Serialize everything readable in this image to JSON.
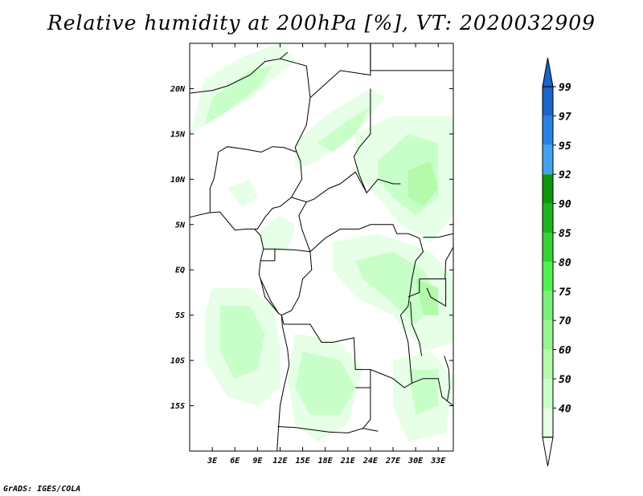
{
  "title": "Relative humidity at 200hPa [%], VT: 2020032909",
  "credit": "GrADS: IGES/COLA",
  "map": {
    "lon_range": [
      0,
      35
    ],
    "lat_range": [
      -20,
      25
    ],
    "lat_ticks": [
      {
        "value": 20,
        "label": "20N"
      },
      {
        "value": 15,
        "label": "15N"
      },
      {
        "value": 10,
        "label": "10N"
      },
      {
        "value": 5,
        "label": "5N"
      },
      {
        "value": 0,
        "label": "EQ"
      },
      {
        "value": -5,
        "label": "5S"
      },
      {
        "value": -10,
        "label": "10S"
      },
      {
        "value": -15,
        "label": "15S"
      }
    ],
    "lon_ticks": [
      {
        "value": 3,
        "label": "3E"
      },
      {
        "value": 6,
        "label": "6E"
      },
      {
        "value": 9,
        "label": "9E"
      },
      {
        "value": 12,
        "label": "12E"
      },
      {
        "value": 15,
        "label": "15E"
      },
      {
        "value": 18,
        "label": "18E"
      },
      {
        "value": 21,
        "label": "21E"
      },
      {
        "value": 24,
        "label": "24E"
      },
      {
        "value": 27,
        "label": "27E"
      },
      {
        "value": 30,
        "label": "30E"
      },
      {
        "value": 33,
        "label": "33E"
      }
    ],
    "humid_regions": [
      {
        "level": 40,
        "pts": [
          [
            2,
            21
          ],
          [
            7,
            23.5
          ],
          [
            12,
            25
          ],
          [
            14,
            23
          ],
          [
            8,
            19
          ],
          [
            3,
            16.5
          ],
          [
            0,
            15
          ]
        ]
      },
      {
        "level": 50,
        "pts": [
          [
            3,
            19
          ],
          [
            8,
            22
          ],
          [
            11,
            22.5
          ],
          [
            9,
            20
          ],
          [
            5,
            17.5
          ],
          [
            2,
            16
          ]
        ]
      },
      {
        "level": 40,
        "pts": [
          [
            14,
            14
          ],
          [
            18,
            17
          ],
          [
            24,
            20
          ],
          [
            26,
            19
          ],
          [
            22,
            15
          ],
          [
            17,
            12
          ],
          [
            14,
            11
          ]
        ]
      },
      {
        "level": 50,
        "pts": [
          [
            17,
            14
          ],
          [
            21,
            16.5
          ],
          [
            24,
            18
          ],
          [
            22,
            15
          ],
          [
            19,
            13
          ]
        ]
      },
      {
        "level": 40,
        "pts": [
          [
            22,
            15
          ],
          [
            27,
            17
          ],
          [
            35,
            17
          ],
          [
            35,
            6
          ],
          [
            32,
            3
          ],
          [
            28,
            5
          ],
          [
            25,
            8
          ],
          [
            22,
            11
          ]
        ]
      },
      {
        "level": 50,
        "pts": [
          [
            25,
            12
          ],
          [
            29,
            15
          ],
          [
            33,
            14
          ],
          [
            33,
            8
          ],
          [
            30,
            6
          ],
          [
            27,
            8
          ],
          [
            25,
            10
          ]
        ]
      },
      {
        "level": 60,
        "pts": [
          [
            29,
            11
          ],
          [
            32,
            12
          ],
          [
            33,
            9
          ],
          [
            31,
            7
          ],
          [
            29,
            8
          ]
        ]
      },
      {
        "level": 40,
        "pts": [
          [
            19,
            3
          ],
          [
            25,
            4
          ],
          [
            32,
            2
          ],
          [
            35,
            -1
          ],
          [
            35,
            -8
          ],
          [
            31,
            -9
          ],
          [
            27,
            -5
          ],
          [
            22,
            -3
          ],
          [
            19,
            0
          ]
        ]
      },
      {
        "level": 50,
        "pts": [
          [
            22,
            1
          ],
          [
            27,
            2
          ],
          [
            31,
            0
          ],
          [
            33,
            -3
          ],
          [
            30,
            -6
          ],
          [
            26,
            -3
          ],
          [
            23,
            -1
          ]
        ]
      },
      {
        "level": 60,
        "pts": [
          [
            30,
            -1
          ],
          [
            33,
            -2
          ],
          [
            33,
            -5
          ],
          [
            31,
            -5
          ]
        ]
      },
      {
        "level": 40,
        "pts": [
          [
            3,
            -2
          ],
          [
            8,
            -2
          ],
          [
            11,
            -4
          ],
          [
            12,
            -8
          ],
          [
            12,
            -13
          ],
          [
            9,
            -15
          ],
          [
            5,
            -14
          ],
          [
            2,
            -10
          ],
          [
            2,
            -5
          ]
        ]
      },
      {
        "level": 50,
        "pts": [
          [
            4,
            -4
          ],
          [
            8,
            -4
          ],
          [
            10,
            -7
          ],
          [
            9,
            -11
          ],
          [
            6,
            -12
          ],
          [
            4,
            -9
          ]
        ]
      },
      {
        "level": 40,
        "pts": [
          [
            14,
            -7
          ],
          [
            20,
            -8
          ],
          [
            23,
            -11
          ],
          [
            21,
            -17
          ],
          [
            17,
            -19
          ],
          [
            14,
            -17
          ],
          [
            13,
            -12
          ]
        ]
      },
      {
        "level": 50,
        "pts": [
          [
            15,
            -9
          ],
          [
            20,
            -10
          ],
          [
            22,
            -13
          ],
          [
            20,
            -16
          ],
          [
            16,
            -16
          ],
          [
            14,
            -13
          ]
        ]
      },
      {
        "level": 40,
        "pts": [
          [
            27,
            -10
          ],
          [
            32,
            -9
          ],
          [
            35,
            -12
          ],
          [
            34,
            -18
          ],
          [
            29,
            -19
          ],
          [
            27,
            -15
          ]
        ]
      },
      {
        "level": 50,
        "pts": [
          [
            29,
            -11
          ],
          [
            33,
            -11
          ],
          [
            33,
            -15
          ],
          [
            30,
            -16
          ]
        ]
      },
      {
        "level": 40,
        "pts": [
          [
            9,
            4
          ],
          [
            12,
            6
          ],
          [
            14,
            5
          ],
          [
            13,
            2
          ],
          [
            10,
            2
          ]
        ]
      },
      {
        "level": 40,
        "pts": [
          [
            5,
            9
          ],
          [
            8,
            10
          ],
          [
            9,
            8
          ],
          [
            7,
            7
          ]
        ]
      }
    ],
    "borders": [
      [
        [
          0,
          19.5
        ],
        [
          3,
          19.8
        ],
        [
          5,
          20.3
        ],
        [
          8,
          21.5
        ],
        [
          10,
          23
        ],
        [
          12,
          23.3
        ],
        [
          13,
          24
        ]
      ],
      [
        [
          12,
          23.3
        ],
        [
          15.5,
          22.5
        ],
        [
          16,
          19
        ],
        [
          15.5,
          16
        ],
        [
          14,
          13.5
        ],
        [
          14.2,
          13
        ]
      ],
      [
        [
          16,
          19
        ],
        [
          20,
          22
        ],
        [
          24,
          21.5
        ],
        [
          24,
          25
        ]
      ],
      [
        [
          24,
          20
        ],
        [
          24,
          15
        ],
        [
          22.5,
          13.5
        ],
        [
          21.8,
          12.5
        ],
        [
          22.5,
          10.5
        ],
        [
          23.5,
          8.5
        ],
        [
          25,
          10
        ],
        [
          27,
          9.5
        ],
        [
          28,
          9.5
        ]
      ],
      [
        [
          14.2,
          13
        ],
        [
          12.5,
          13.5
        ],
        [
          11,
          13.6
        ],
        [
          9.5,
          13
        ],
        [
          7.5,
          13.3
        ],
        [
          5,
          13.6
        ],
        [
          3.8,
          13
        ],
        [
          3.6,
          11.8
        ],
        [
          3.2,
          10
        ],
        [
          2.7,
          9
        ],
        [
          2.7,
          6.3
        ]
      ],
      [
        [
          14.2,
          13
        ],
        [
          14.7,
          12
        ],
        [
          14.9,
          10
        ],
        [
          13.5,
          8
        ],
        [
          12,
          7
        ],
        [
          11,
          6.8
        ],
        [
          10,
          5.8
        ],
        [
          9,
          4.5
        ],
        [
          8.6,
          4.5
        ]
      ],
      [
        [
          13.5,
          8
        ],
        [
          15.5,
          7.5
        ],
        [
          16.5,
          7.8
        ],
        [
          18.5,
          9
        ],
        [
          20,
          9.5
        ],
        [
          22,
          10.8
        ],
        [
          23.5,
          8.5
        ]
      ],
      [
        [
          14.9,
          4.5
        ],
        [
          14.5,
          6
        ],
        [
          15.5,
          7.5
        ]
      ],
      [
        [
          14.9,
          4.5
        ],
        [
          16,
          2
        ],
        [
          18,
          3.5
        ],
        [
          20,
          4.5
        ],
        [
          22.5,
          4.5
        ],
        [
          24,
          5
        ],
        [
          27,
          5
        ],
        [
          27.5,
          4
        ],
        [
          29,
          4
        ],
        [
          30.5,
          3.5
        ],
        [
          31,
          2
        ],
        [
          30,
          1
        ]
      ],
      [
        [
          9.8,
          2.3
        ],
        [
          11.3,
          2.3
        ],
        [
          11.3,
          1
        ],
        [
          9.4,
          1
        ]
      ],
      [
        [
          11.3,
          2.3
        ],
        [
          14,
          2.2
        ],
        [
          16,
          2
        ],
        [
          16.2,
          0
        ],
        [
          15,
          -1
        ],
        [
          14.5,
          -3
        ],
        [
          13.5,
          -4.5
        ],
        [
          12.2,
          -5
        ]
      ],
      [
        [
          9.4,
          -1
        ],
        [
          10,
          -3
        ],
        [
          11,
          -4
        ],
        [
          11.8,
          -4.8
        ]
      ],
      [
        [
          12.2,
          -5
        ],
        [
          12.5,
          -6
        ],
        [
          16,
          -6
        ],
        [
          17.5,
          -8
        ],
        [
          19,
          -8
        ],
        [
          21.8,
          -7.5
        ],
        [
          22,
          -11
        ],
        [
          24,
          -11
        ],
        [
          25.5,
          -11.5
        ],
        [
          27,
          -12
        ],
        [
          28.5,
          -13
        ],
        [
          29.5,
          -12.5
        ],
        [
          29,
          -8
        ],
        [
          28,
          -5
        ],
        [
          29,
          -4
        ],
        [
          29.5,
          -1
        ],
        [
          30,
          1
        ]
      ],
      [
        [
          11.7,
          -17.3
        ],
        [
          14,
          -17.4
        ],
        [
          18.5,
          -17.9
        ],
        [
          21,
          -18
        ],
        [
          23,
          -17.5
        ],
        [
          25,
          -17.8
        ]
      ],
      [
        [
          22,
          -13
        ],
        [
          24,
          -13
        ],
        [
          24,
          -16.5
        ],
        [
          23,
          -17.5
        ]
      ],
      [
        [
          24,
          -11
        ],
        [
          24,
          -13
        ]
      ],
      [
        [
          30.5,
          -1
        ],
        [
          30.5,
          -2.5
        ],
        [
          29,
          -3
        ]
      ],
      [
        [
          30.5,
          -1
        ],
        [
          33.9,
          -1
        ],
        [
          34,
          1
        ],
        [
          35,
          2.5
        ]
      ],
      [
        [
          29.5,
          -12.5
        ],
        [
          31,
          -12
        ],
        [
          33,
          -12
        ],
        [
          33.5,
          -14
        ],
        [
          35,
          -15
        ]
      ],
      [
        [
          26,
          22
        ],
        [
          35,
          22
        ]
      ],
      [
        [
          24,
          25
        ],
        [
          24,
          22
        ],
        [
          26,
          22
        ]
      ],
      [
        [
          31,
          3.6
        ],
        [
          33,
          3.6
        ],
        [
          35,
          4
        ]
      ],
      [
        [
          32,
          -1
        ],
        [
          34,
          -1
        ],
        [
          34,
          -4
        ],
        [
          32,
          -3
        ],
        [
          31.5,
          -2
        ]
      ],
      [
        [
          29.3,
          -3.5
        ],
        [
          29.5,
          -6
        ],
        [
          30.5,
          -8
        ],
        [
          30.8,
          -9.5
        ]
      ],
      [
        [
          33.8,
          -9.5
        ],
        [
          34.4,
          -11
        ],
        [
          34.5,
          -13
        ],
        [
          34.2,
          -14.5
        ]
      ]
    ],
    "coastline": [
      [
        0,
        5.8
      ],
      [
        2.5,
        6.3
      ],
      [
        4,
        6.4
      ],
      [
        6,
        4.4
      ],
      [
        7.5,
        4.5
      ],
      [
        8.6,
        4.5
      ],
      [
        9.4,
        3.8
      ],
      [
        9.8,
        2.3
      ],
      [
        9.4,
        1
      ],
      [
        9.2,
        -0.5
      ],
      [
        9.4,
        -1
      ],
      [
        10.8,
        -3.5
      ],
      [
        11.8,
        -4.8
      ],
      [
        12.2,
        -5
      ],
      [
        12.3,
        -6.2
      ],
      [
        13,
        -8.8
      ],
      [
        13.2,
        -10.5
      ],
      [
        12.5,
        -13
      ],
      [
        12,
        -15
      ],
      [
        11.8,
        -17.3
      ],
      [
        11.6,
        -20
      ]
    ],
    "colorbar": [
      {
        "label": "99",
        "color": "#1c64c8"
      },
      {
        "label": "97",
        "color": "#2882e6"
      },
      {
        "label": "95",
        "color": "#46a0f0"
      },
      {
        "label": "92",
        "color": "#0e960e"
      },
      {
        "label": "90",
        "color": "#1eb41e"
      },
      {
        "label": "85",
        "color": "#37d237"
      },
      {
        "label": "80",
        "color": "#50f050"
      },
      {
        "label": "75",
        "color": "#78f078"
      },
      {
        "label": "70",
        "color": "#96f58c"
      },
      {
        "label": "60",
        "color": "#b4faaa"
      },
      {
        "label": "50",
        "color": "#c8ffc8"
      },
      {
        "label": "40",
        "color": "#e6ffe6"
      }
    ],
    "level_colors": {
      "40": "#e6ffe6",
      "50": "#c8ffc8",
      "60": "#b4faaa"
    }
  }
}
